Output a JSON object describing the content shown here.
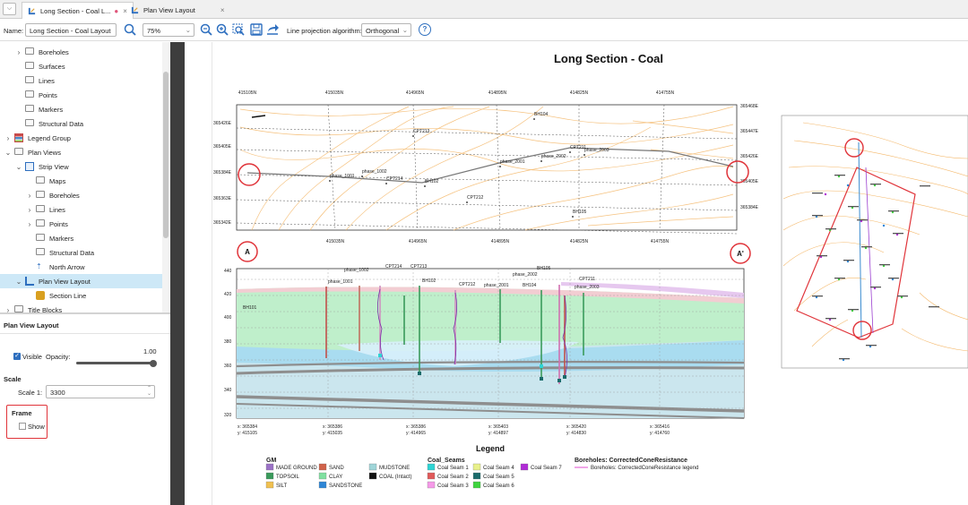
{
  "tabs": [
    {
      "label": "Long Section - Coal L...",
      "modified": "●",
      "close": "×"
    },
    {
      "label": "Plan View Layout",
      "close": "×"
    }
  ],
  "toolbar": {
    "name_label": "Name:",
    "name_value": "Long Section - Coal Layout",
    "zoom_value": "75%",
    "projection_label": "Line projection algorithm:",
    "projection_value": "Orthogonal",
    "help_glyph": "?"
  },
  "tree": {
    "items": [
      {
        "label": "Boreholes"
      },
      {
        "label": "Surfaces"
      },
      {
        "label": "Lines"
      },
      {
        "label": "Points"
      },
      {
        "label": "Markers"
      },
      {
        "label": "Structural Data"
      },
      {
        "label": "Legend Group"
      },
      {
        "label": "Plan Views"
      },
      {
        "label": "Strip View"
      },
      {
        "label": "Maps"
      },
      {
        "label": "Boreholes"
      },
      {
        "label": "Lines"
      },
      {
        "label": "Points"
      },
      {
        "label": "Markers"
      },
      {
        "label": "Structural Data"
      },
      {
        "label": "North Arrow"
      },
      {
        "label": "Plan View Layout"
      },
      {
        "label": "Section Line"
      },
      {
        "label": "Title Blocks"
      }
    ]
  },
  "props": {
    "title": "Plan View Layout",
    "visible_label": "Visible",
    "opacity_label": "Opacity:",
    "opacity_value": "1.00",
    "opacity_fraction": 1.0,
    "scale_heading": "Scale",
    "scale_label": "Scale 1:",
    "scale_value": "3300",
    "frame_heading": "Frame",
    "show_label": "Show"
  },
  "layout": {
    "title": "Long Section - Coal",
    "plan_top_labels": [
      "415105N",
      "415035N",
      "414965N",
      "414895N",
      "414825N",
      "414755N"
    ],
    "plan_bottom_labels": [
      "415035N",
      "414965N",
      "414895N",
      "414825N",
      "414755N"
    ],
    "plan_left_labels": [
      "365426E",
      "365405E",
      "365384E",
      "365363E",
      "365342E"
    ],
    "plan_right_labels": [
      "365468E",
      "365447E",
      "365426E",
      "365405E",
      "365384E"
    ],
    "plan_points": [
      "BH104",
      "CPT213",
      "phase_2002",
      "CPT211",
      "phase_2003",
      "phase_2001",
      "phase_1001",
      "phase_1002",
      "CPT214",
      "BH102",
      "CPT212",
      "BH105"
    ],
    "marker_a": "A",
    "marker_a_prime": "A'",
    "section_y_labels": [
      "440",
      "420",
      "400",
      "380",
      "360",
      "340",
      "320"
    ],
    "section_points": [
      "phase_1002",
      "CPT214",
      "CPT213",
      "phase_1001",
      "BH102",
      "CPT212",
      "phase_2001",
      "phase_2002",
      "BH105",
      "BH104",
      "CPT211",
      "phase_2003",
      "BH101"
    ],
    "section_x_labels": [
      {
        "x": "x: 365384",
        "y": "y: 415105"
      },
      {
        "x": "x: 365386",
        "y": "y: 415035"
      },
      {
        "x": "x: 365386",
        "y": "y: 414965"
      },
      {
        "x": "x: 365403",
        "y": "y: 414897"
      },
      {
        "x": "x: 365420",
        "y": "y: 414830"
      },
      {
        "x": "x: 365416",
        "y": "y: 414760"
      }
    ]
  },
  "legend": {
    "title": "Legend",
    "groups": [
      {
        "title": "GM",
        "items": [
          {
            "label": "MADE GROUND",
            "color": "#9b72c6"
          },
          {
            "label": "TOPSOIL",
            "color": "#3a9a5b"
          },
          {
            "label": "SILT",
            "color": "#f0c050"
          },
          {
            "label": "SAND",
            "color": "#d0624a"
          },
          {
            "label": "CLAY",
            "color": "#7fe0a0"
          },
          {
            "label": "SANDSTONE",
            "color": "#2e86d6"
          },
          {
            "label": "MUDSTONE",
            "color": "#9fd5d8"
          },
          {
            "label": "COAL (Intact)",
            "color": "#111111"
          }
        ]
      },
      {
        "title": "Coal_Seams",
        "items": [
          {
            "label": "Coal Seam 1",
            "color": "#2ed4d4"
          },
          {
            "label": "Coal Seam 2",
            "color": "#e05a5a"
          },
          {
            "label": "Coal Seam 3",
            "color": "#f59ae8"
          },
          {
            "label": "Coal Seam 4",
            "color": "#e8f08a"
          },
          {
            "label": "Coal Seam 5",
            "color": "#1a6b6b"
          },
          {
            "label": "Coal Seam 6",
            "color": "#3fd43f"
          },
          {
            "label": "Coal Seam 7",
            "color": "#b02bd6"
          }
        ]
      },
      {
        "title": "Boreholes: CorrectedConeResistance",
        "items": [
          {
            "label": "Boreholes: CorrectedConeResistance legend",
            "color": "#e56ad8"
          }
        ]
      }
    ]
  },
  "colors": {
    "accent": "#1a73c8",
    "selection": "#cde8f7",
    "annotation_red": "#e0343a"
  }
}
